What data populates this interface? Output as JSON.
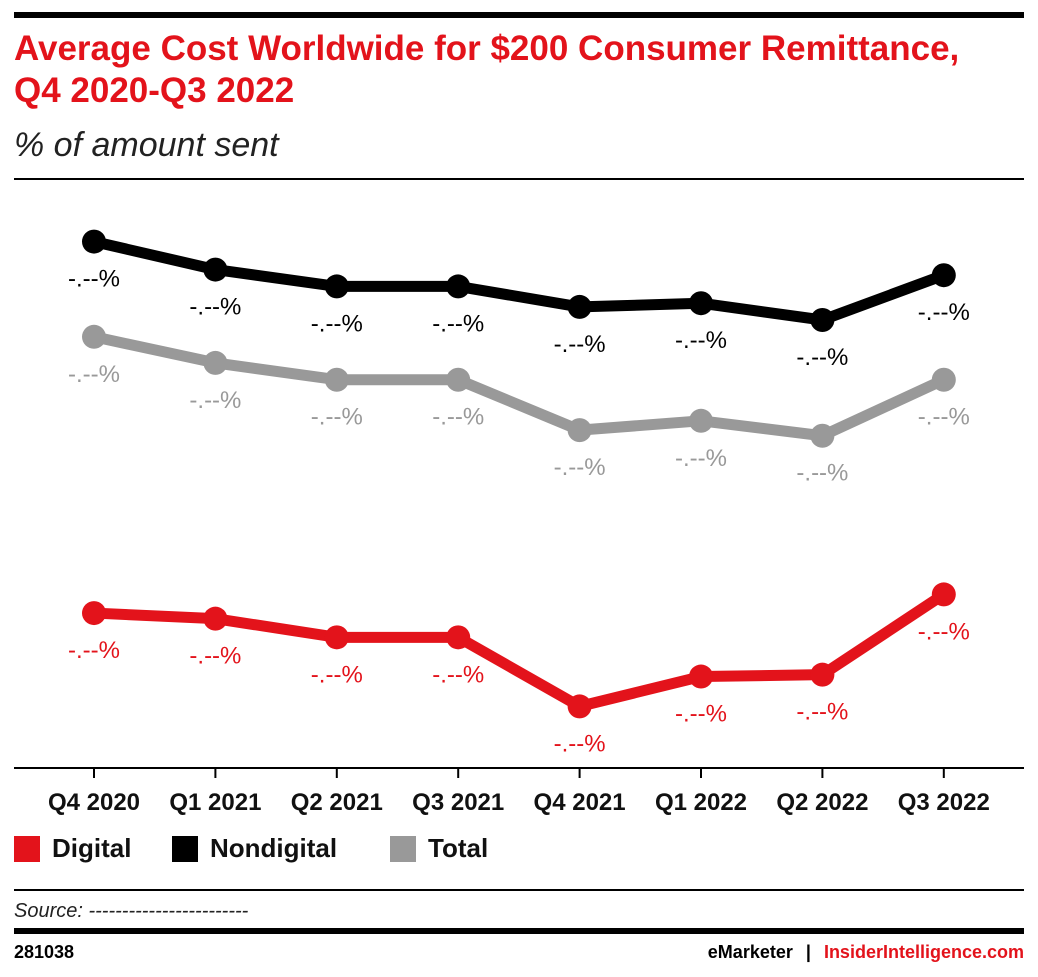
{
  "title": "Average Cost Worldwide for $200 Consumer Remittance, Q4 2020-Q3 2022",
  "subtitle": "% of amount sent",
  "source": "Source: ------------------------",
  "figure_id": "281038",
  "brand": {
    "emarketer": "eMarketer",
    "sep": "|",
    "insider": "InsiderIntelligence.com"
  },
  "chart_data": {
    "type": "line",
    "title": "Average Cost Worldwide for $200 Consumer Remittance, Q4 2020-Q3 2022",
    "subtitle": "% of amount sent",
    "categories": [
      "Q4 2020",
      "Q1 2021",
      "Q2 2021",
      "Q3 2021",
      "Q4 2021",
      "Q1 2022",
      "Q2 2022",
      "Q3 2022"
    ],
    "ylim": [
      4.2,
      7.35
    ],
    "grid": false,
    "legend_position": "bottom-left",
    "series": [
      {
        "name": "Digital",
        "color": "#e3131b",
        "values": [
          5.03,
          5.0,
          4.9,
          4.9,
          4.53,
          4.69,
          4.7,
          5.13
        ],
        "labels": [
          "-.--%",
          "-.--%",
          "-.--%",
          "-.--%",
          "-.--%",
          "-.--%",
          "-.--%",
          "-.--%"
        ]
      },
      {
        "name": "Nondigital",
        "color": "#000000",
        "values": [
          7.02,
          6.87,
          6.78,
          6.78,
          6.67,
          6.69,
          6.6,
          6.84
        ],
        "labels": [
          "-.--%",
          "-.--%",
          "-.--%",
          "-.--%",
          "-.--%",
          "-.--%",
          "-.--%",
          "-.--%"
        ]
      },
      {
        "name": "Total",
        "color": "#999999",
        "values": [
          6.51,
          6.37,
          6.28,
          6.28,
          6.01,
          6.06,
          5.98,
          6.28
        ],
        "labels": [
          "-.--%",
          "-.--%",
          "-.--%",
          "-.--%",
          "-.--%",
          "-.--%",
          "-.--%",
          "-.--%"
        ]
      }
    ]
  }
}
